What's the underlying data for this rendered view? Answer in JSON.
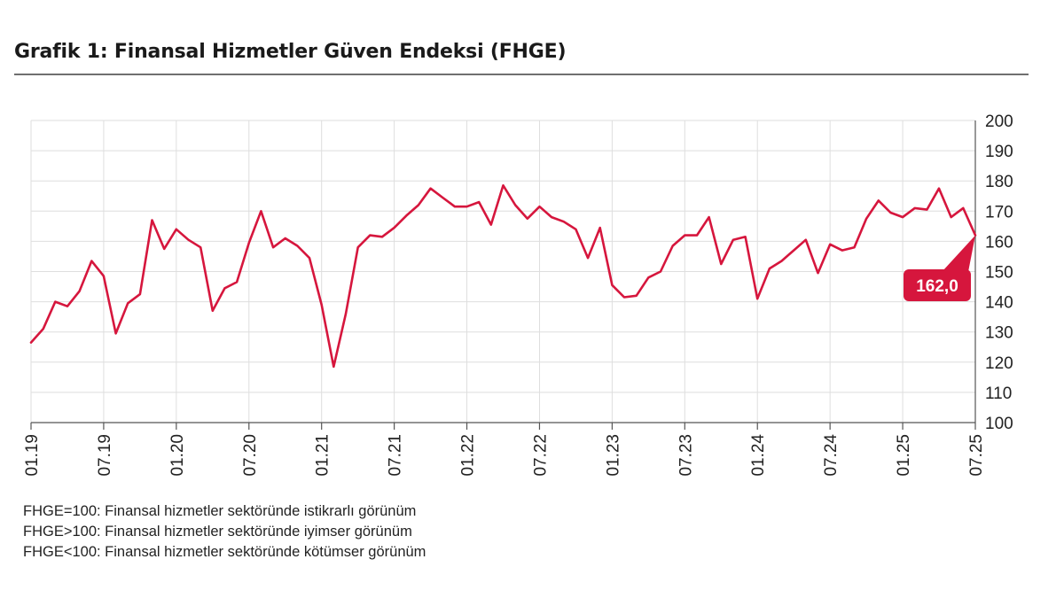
{
  "chart_data": {
    "type": "line",
    "title": "Grafik 1: Finansal Hizmetler Güven Endeksi (FHGE)",
    "xlabel": "",
    "ylabel": "",
    "ylim": [
      100,
      200
    ],
    "yticks": [
      "100",
      "110",
      "120",
      "130",
      "140",
      "150",
      "160",
      "170",
      "180",
      "190",
      "200"
    ],
    "xtick_labels": [
      "01.19",
      "07.19",
      "01.20",
      "07.20",
      "01.21",
      "07.21",
      "01.22",
      "07.22",
      "01.23",
      "07.23",
      "01.24",
      "07.24",
      "01.25",
      "07.25"
    ],
    "grid": true,
    "line_color": "#d6163d",
    "series": [
      {
        "values": [
          126.5,
          131,
          140,
          138.5,
          143.5,
          153.5,
          148.5,
          129.5,
          139.5,
          142.5,
          167,
          157.5,
          164,
          160.5,
          158,
          137,
          144.5,
          146.5,
          159.5,
          170,
          158,
          161,
          158.5,
          154.5,
          139,
          118.5,
          136,
          158,
          162,
          161.5,
          164.5,
          168.5,
          172,
          177.5,
          174.5,
          171.5,
          171.5,
          173,
          165.5,
          178.5,
          172,
          167.5,
          171.5,
          168,
          166.5,
          164,
          154.5,
          164.5,
          145.5,
          141.5,
          142,
          148,
          150,
          158.5,
          162,
          162,
          168,
          152.5,
          160.5,
          161.5,
          141,
          151,
          153.5,
          157,
          160.5,
          149.5,
          159,
          157,
          158,
          167.5,
          173.5,
          169.5,
          168,
          171,
          170.5,
          177.5,
          168,
          171,
          162
        ]
      }
    ],
    "annotation": "162,0",
    "annotation_color": "#d6163d"
  },
  "notes": [
    "FHGE=100: Finansal hizmetler sektöründe istikrarlı görünüm",
    "FHGE>100: Finansal hizmetler sektöründe iyimser görünüm",
    "FHGE<100: Finansal hizmetler sektöründe kötümser görünüm"
  ]
}
